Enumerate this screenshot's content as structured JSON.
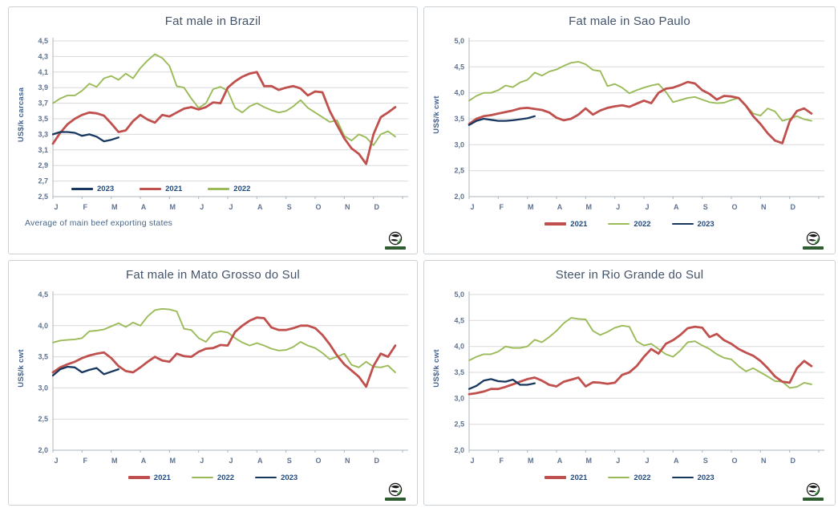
{
  "colors": {
    "series_2021": "#C0504D",
    "series_2022": "#9BBB59",
    "series_2023": "#17375E",
    "title_text": "#44546A",
    "axis_text": "#5D7290",
    "legend_text": "#1F497D",
    "gridline": "#D9D9D9",
    "axis_line": "#A9B4BC",
    "panel_border": "#CCD1D6"
  },
  "branding": {
    "icon": "globe-world-logo"
  },
  "chart_data": [
    {
      "type": "line",
      "title": "Fat male in Brazil",
      "ylabel": "US$/k carcasa",
      "note": "Average of main beef exporting states",
      "ylim": [
        2.5,
        4.5
      ],
      "yticks": [
        2.5,
        2.7,
        2.9,
        3.1,
        3.3,
        3.5,
        3.7,
        3.9,
        4.1,
        4.3,
        4.5
      ],
      "months": [
        "J",
        "F",
        "M",
        "A",
        "M",
        "J",
        "J",
        "A",
        "S",
        "O",
        "N",
        "D"
      ],
      "grid": "horizontal",
      "legend_position": "inside-bottom-left",
      "legend_order": [
        "2023",
        "2021",
        "2022"
      ],
      "series": [
        {
          "name": "2022",
          "values": [
            3.7,
            3.76,
            3.8,
            3.8,
            3.86,
            3.95,
            3.91,
            4.02,
            4.05,
            4.0,
            4.08,
            4.02,
            4.15,
            4.25,
            4.33,
            4.28,
            4.18,
            3.92,
            3.9,
            3.76,
            3.64,
            3.7,
            3.88,
            3.91,
            3.86,
            3.64,
            3.58,
            3.66,
            3.7,
            3.65,
            3.61,
            3.58,
            3.6,
            3.66,
            3.74,
            3.64,
            3.58,
            3.52,
            3.46,
            3.48,
            3.28,
            3.22,
            3.3,
            3.26,
            3.16,
            3.3,
            3.34,
            3.27
          ]
        },
        {
          "name": "2021",
          "values": [
            3.18,
            3.32,
            3.43,
            3.5,
            3.55,
            3.58,
            3.57,
            3.54,
            3.44,
            3.33,
            3.35,
            3.47,
            3.55,
            3.49,
            3.45,
            3.55,
            3.53,
            3.58,
            3.63,
            3.65,
            3.62,
            3.65,
            3.71,
            3.7,
            3.9,
            3.98,
            4.04,
            4.08,
            4.1,
            3.92,
            3.92,
            3.87,
            3.9,
            3.92,
            3.89,
            3.8,
            3.85,
            3.84,
            3.6,
            3.42,
            3.25,
            3.12,
            3.05,
            2.92,
            3.3,
            3.52,
            3.58,
            3.65
          ]
        },
        {
          "name": "2023",
          "values": [
            3.3,
            3.33,
            3.33,
            3.32,
            3.28,
            3.3,
            3.27,
            3.21,
            3.23,
            3.26
          ]
        }
      ]
    },
    {
      "type": "line",
      "title": "Fat male in Sao Paulo",
      "ylabel": "US$/k cwt",
      "ylim": [
        2.0,
        5.0
      ],
      "yticks": [
        2.0,
        2.5,
        3.0,
        3.5,
        4.0,
        4.5,
        5.0
      ],
      "months": [
        "J",
        "F",
        "M",
        "A",
        "M",
        "J",
        "J",
        "A",
        "S",
        "O",
        "N",
        "D"
      ],
      "grid": "horizontal",
      "legend_position": "below-center",
      "legend_order": [
        "2021",
        "2022",
        "2023"
      ],
      "series": [
        {
          "name": "2022",
          "values": [
            3.85,
            3.94,
            4.0,
            4.0,
            4.05,
            4.14,
            4.11,
            4.2,
            4.25,
            4.39,
            4.33,
            4.41,
            4.45,
            4.52,
            4.58,
            4.6,
            4.55,
            4.44,
            4.42,
            4.13,
            4.17,
            4.1,
            3.99,
            4.05,
            4.1,
            4.14,
            4.17,
            4.02,
            3.82,
            3.86,
            3.9,
            3.92,
            3.87,
            3.82,
            3.8,
            3.81,
            3.86,
            3.9,
            3.76,
            3.6,
            3.56,
            3.7,
            3.64,
            3.46,
            3.5,
            3.55,
            3.49,
            3.46
          ]
        },
        {
          "name": "2021",
          "values": [
            3.4,
            3.5,
            3.55,
            3.57,
            3.6,
            3.63,
            3.66,
            3.7,
            3.71,
            3.69,
            3.67,
            3.62,
            3.52,
            3.47,
            3.5,
            3.58,
            3.7,
            3.58,
            3.66,
            3.71,
            3.74,
            3.76,
            3.73,
            3.79,
            3.85,
            3.8,
            4.0,
            4.08,
            4.1,
            4.15,
            4.21,
            4.18,
            4.05,
            3.98,
            3.87,
            3.94,
            3.93,
            3.9,
            3.75,
            3.55,
            3.4,
            3.22,
            3.08,
            3.03,
            3.45,
            3.65,
            3.7,
            3.6
          ]
        },
        {
          "name": "2023",
          "values": [
            3.38,
            3.46,
            3.5,
            3.48,
            3.46,
            3.46,
            3.47,
            3.49,
            3.51,
            3.55
          ]
        }
      ]
    },
    {
      "type": "line",
      "title": "Fat male in Mato Grosso do Sul",
      "ylabel": "US$/k cwt",
      "ylim": [
        2.0,
        4.5
      ],
      "yticks": [
        2.0,
        2.5,
        3.0,
        3.5,
        4.0,
        4.5
      ],
      "months": [
        "J",
        "F",
        "M",
        "A",
        "M",
        "J",
        "J",
        "A",
        "S",
        "O",
        "N",
        "D"
      ],
      "grid": "horizontal",
      "legend_position": "below-center",
      "legend_order": [
        "2021",
        "2022",
        "2023"
      ],
      "series": [
        {
          "name": "2022",
          "values": [
            3.73,
            3.76,
            3.77,
            3.78,
            3.8,
            3.91,
            3.92,
            3.94,
            3.99,
            4.04,
            3.98,
            4.05,
            4.0,
            4.15,
            4.25,
            4.27,
            4.26,
            4.23,
            3.95,
            3.93,
            3.8,
            3.74,
            3.88,
            3.91,
            3.89,
            3.8,
            3.73,
            3.68,
            3.72,
            3.68,
            3.63,
            3.6,
            3.61,
            3.66,
            3.74,
            3.68,
            3.64,
            3.56,
            3.46,
            3.5,
            3.55,
            3.37,
            3.33,
            3.42,
            3.34,
            3.33,
            3.36,
            3.25
          ]
        },
        {
          "name": "2021",
          "values": [
            3.25,
            3.33,
            3.38,
            3.42,
            3.48,
            3.52,
            3.55,
            3.57,
            3.48,
            3.35,
            3.27,
            3.25,
            3.33,
            3.42,
            3.5,
            3.44,
            3.42,
            3.55,
            3.51,
            3.5,
            3.58,
            3.63,
            3.64,
            3.69,
            3.68,
            3.9,
            4.0,
            4.08,
            4.13,
            4.12,
            3.97,
            3.93,
            3.93,
            3.96,
            4.0,
            4.0,
            3.96,
            3.85,
            3.7,
            3.52,
            3.38,
            3.28,
            3.18,
            3.02,
            3.35,
            3.55,
            3.5,
            3.68
          ]
        },
        {
          "name": "2023",
          "values": [
            3.2,
            3.3,
            3.34,
            3.33,
            3.25,
            3.29,
            3.32,
            3.22,
            3.26,
            3.3
          ]
        }
      ]
    },
    {
      "type": "line",
      "title": "Steer in Rio Grande do Sul",
      "ylabel": "US$/k cwt",
      "ylim": [
        2.0,
        5.0
      ],
      "yticks": [
        2.0,
        2.5,
        3.0,
        3.5,
        4.0,
        4.5,
        5.0
      ],
      "months": [
        "J",
        "F",
        "M",
        "A",
        "M",
        "J",
        "J",
        "A",
        "S",
        "O",
        "N",
        "D"
      ],
      "grid": "horizontal",
      "legend_position": "below-center",
      "legend_order": [
        "2021",
        "2022",
        "2023"
      ],
      "series": [
        {
          "name": "2022",
          "values": [
            3.73,
            3.8,
            3.85,
            3.85,
            3.9,
            4.0,
            3.97,
            3.97,
            4.0,
            4.13,
            4.08,
            4.18,
            4.3,
            4.45,
            4.55,
            4.53,
            4.52,
            4.3,
            4.22,
            4.28,
            4.36,
            4.4,
            4.38,
            4.1,
            4.02,
            4.05,
            3.95,
            3.85,
            3.8,
            3.92,
            4.08,
            4.1,
            4.02,
            3.95,
            3.85,
            3.78,
            3.75,
            3.62,
            3.52,
            3.58,
            3.5,
            3.42,
            3.33,
            3.32,
            3.2,
            3.22,
            3.3,
            3.27
          ]
        },
        {
          "name": "2021",
          "values": [
            3.08,
            3.1,
            3.13,
            3.18,
            3.18,
            3.22,
            3.27,
            3.32,
            3.37,
            3.4,
            3.34,
            3.26,
            3.23,
            3.32,
            3.36,
            3.4,
            3.23,
            3.31,
            3.3,
            3.28,
            3.3,
            3.45,
            3.5,
            3.62,
            3.8,
            3.95,
            3.86,
            4.05,
            4.12,
            4.22,
            4.35,
            4.38,
            4.36,
            4.18,
            4.24,
            4.12,
            4.05,
            3.95,
            3.88,
            3.82,
            3.72,
            3.58,
            3.42,
            3.32,
            3.3,
            3.58,
            3.72,
            3.62
          ]
        },
        {
          "name": "2023",
          "values": [
            3.18,
            3.24,
            3.34,
            3.37,
            3.33,
            3.32,
            3.36,
            3.26,
            3.26,
            3.29
          ]
        }
      ]
    }
  ]
}
